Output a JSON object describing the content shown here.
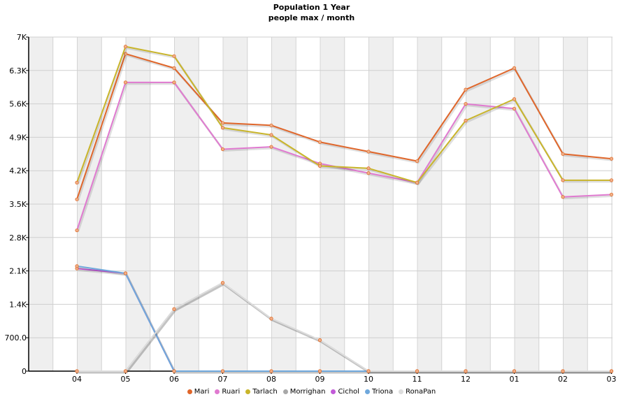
{
  "chart_data": {
    "type": "line",
    "title": "Population 1 Year",
    "subtitle": "people max / month",
    "categories": [
      "04",
      "05",
      "06",
      "07",
      "08",
      "09",
      "10",
      "11",
      "12",
      "01",
      "02",
      "03"
    ],
    "ylim": [
      0,
      7000
    ],
    "yticks": [
      "0",
      "700.0",
      "1.4K",
      "2.1K",
      "2.8K",
      "3.5K",
      "4.2K",
      "4.9K",
      "5.6K",
      "6.3K",
      "7K"
    ],
    "grid": true,
    "legend_position": "bottom",
    "series": [
      {
        "name": "Mari",
        "color": "#e0662a",
        "values": [
          3600,
          6650,
          6350,
          5200,
          5150,
          4800,
          4600,
          4400,
          5900,
          6350,
          4550,
          4450
        ]
      },
      {
        "name": "Ruari",
        "color": "#e07ad0",
        "values": [
          2950,
          6050,
          6050,
          4650,
          4700,
          4350,
          4150,
          3950,
          5600,
          5500,
          3650,
          3700
        ]
      },
      {
        "name": "Tarlach",
        "color": "#c9b52a",
        "values": [
          3950,
          6800,
          6600,
          5100,
          4950,
          4300,
          4250,
          3950,
          5250,
          5700,
          4000,
          4000
        ]
      },
      {
        "name": "Morrighan",
        "color": "#a8a8a8",
        "values": [
          0,
          0,
          1300,
          1850,
          1100,
          650,
          0,
          0,
          0,
          0,
          0,
          0
        ]
      },
      {
        "name": "Cichol",
        "color": "#c25ad8",
        "values": [
          2150,
          2050,
          0,
          0,
          0,
          0,
          0,
          0,
          0,
          0,
          0,
          0
        ]
      },
      {
        "name": "Triona",
        "color": "#6fa8dc",
        "values": [
          2200,
          2050,
          0,
          0,
          0,
          0,
          0,
          0,
          0,
          0,
          0,
          0
        ]
      },
      {
        "name": "RonaPan",
        "color": "#dddddd",
        "values": [
          0,
          0,
          1300,
          1850,
          1100,
          650,
          0,
          0,
          0,
          0,
          0,
          0
        ]
      }
    ]
  }
}
